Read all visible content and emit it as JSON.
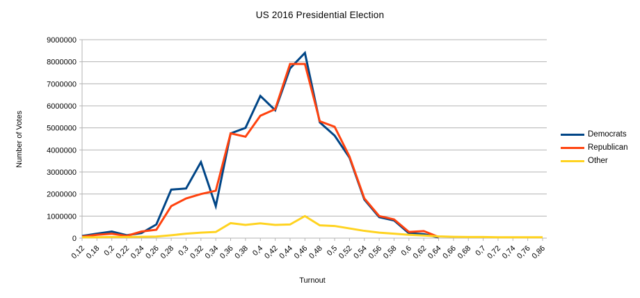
{
  "chart_data": {
    "type": "line",
    "title": "US 2016 Presidential Election",
    "xlabel": "Turnout",
    "ylabel": "Number of Votes",
    "categories": [
      "0,12",
      "0,18",
      "0,2",
      "0,22",
      "0,24",
      "0,26",
      "0,28",
      "0,3",
      "0,32",
      "0,34",
      "0,36",
      "0,38",
      "0,4",
      "0,42",
      "0,44",
      "0,46",
      "0,48",
      "0,5",
      "0,52",
      "0,54",
      "0,56",
      "0,58",
      "0,6",
      "0,62",
      "0,64",
      "0,66",
      "0,68",
      "0,7",
      "0,72",
      "0,74",
      "0,76",
      "0,86"
    ],
    "series": [
      {
        "name": "Democrats",
        "color": "#004586",
        "values": [
          100000,
          200000,
          300000,
          130000,
          230000,
          620000,
          2200000,
          2250000,
          3450000,
          1450000,
          4750000,
          5000000,
          6450000,
          5800000,
          7700000,
          8400000,
          5250000,
          4650000,
          3650000,
          1750000,
          950000,
          800000,
          220000,
          180000,
          30000,
          null,
          null,
          null,
          null,
          null,
          null,
          null
        ]
      },
      {
        "name": "Republican",
        "color": "#ff420e",
        "values": [
          70000,
          150000,
          200000,
          100000,
          300000,
          380000,
          1450000,
          1800000,
          2000000,
          2150000,
          4750000,
          4600000,
          5550000,
          5850000,
          7900000,
          7900000,
          5300000,
          5050000,
          3700000,
          1800000,
          1000000,
          850000,
          280000,
          320000,
          50000,
          null,
          null,
          null,
          null,
          null,
          null,
          null
        ]
      },
      {
        "name": "Other",
        "color": "#ffd320",
        "values": [
          40000,
          40000,
          50000,
          50000,
          60000,
          70000,
          130000,
          200000,
          250000,
          280000,
          680000,
          600000,
          670000,
          600000,
          620000,
          1000000,
          580000,
          550000,
          440000,
          330000,
          250000,
          200000,
          150000,
          120000,
          80000,
          60000,
          50000,
          50000,
          40000,
          40000,
          40000,
          40000
        ]
      }
    ],
    "y_axis": {
      "min": 0,
      "max": 9000000,
      "step": 1000000,
      "tick_labels": [
        "0",
        "1000000",
        "2000000",
        "3000000",
        "4000000",
        "5000000",
        "6000000",
        "7000000",
        "8000000",
        "9000000"
      ]
    },
    "legend": {
      "position": "right",
      "entries": [
        "Democrats",
        "Republican",
        "Other"
      ]
    },
    "grid": {
      "horizontal": true,
      "color": "#b3b3b3"
    },
    "text_color": "#000000",
    "background": "#ffffff"
  }
}
